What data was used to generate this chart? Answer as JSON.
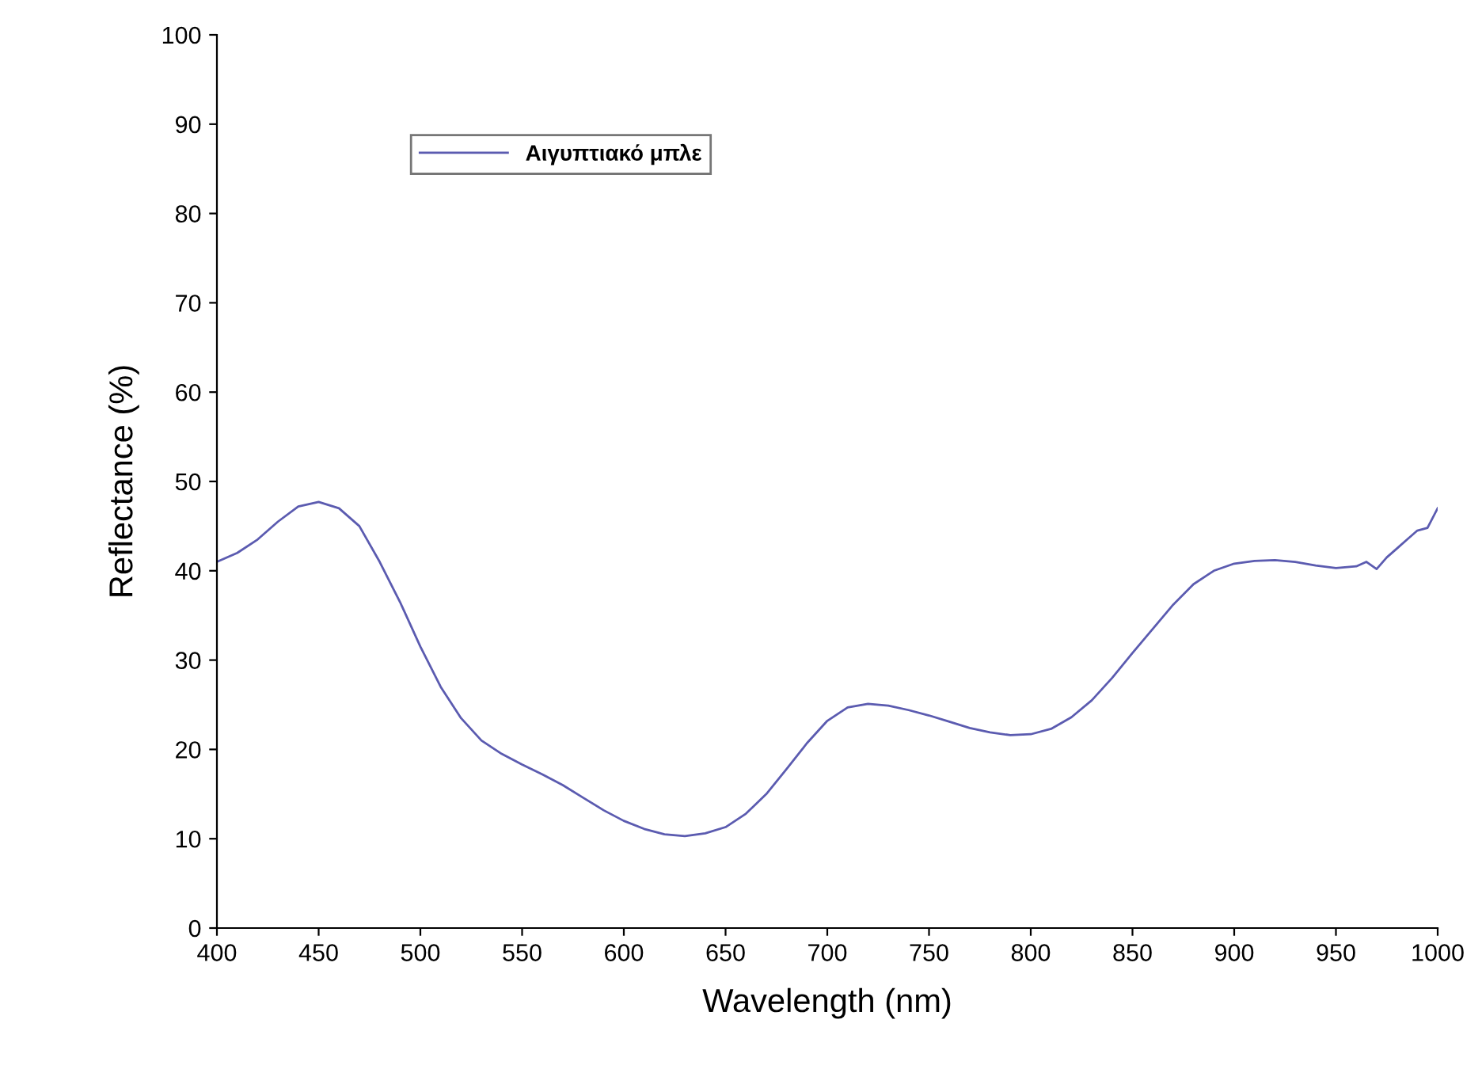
{
  "chart_data": {
    "type": "line",
    "xlabel": "Wavelength (nm)",
    "ylabel": "Reflectance (%)",
    "x": [
      400,
      410,
      420,
      430,
      440,
      450,
      460,
      470,
      480,
      490,
      500,
      510,
      520,
      530,
      540,
      550,
      560,
      570,
      580,
      590,
      600,
      610,
      620,
      630,
      640,
      650,
      660,
      670,
      680,
      690,
      700,
      710,
      720,
      730,
      740,
      750,
      760,
      770,
      780,
      790,
      800,
      810,
      820,
      830,
      840,
      850,
      860,
      870,
      880,
      890,
      900,
      910,
      920,
      930,
      940,
      950,
      960,
      965,
      970,
      975,
      980,
      985,
      990,
      995,
      1000
    ],
    "series": [
      {
        "name": "Αιγυπτιακό μπλε",
        "color": "#5b5bb0",
        "values": [
          41,
          42,
          43.5,
          45.5,
          47.2,
          47.7,
          47,
          45,
          41,
          36.5,
          31.5,
          27,
          23.5,
          21,
          19.5,
          18.3,
          17.2,
          16,
          14.6,
          13.2,
          12,
          11.1,
          10.5,
          10.3,
          10.6,
          11.3,
          12.8,
          15,
          17.8,
          20.7,
          23.2,
          24.7,
          25.1,
          24.9,
          24.4,
          23.8,
          23.1,
          22.4,
          21.9,
          21.6,
          21.7,
          22.3,
          23.6,
          25.5,
          28,
          30.8,
          33.5,
          36.2,
          38.5,
          40,
          40.8,
          41.1,
          41.2,
          41,
          40.6,
          40.3,
          40.5,
          41,
          40.2,
          41.5,
          42.5,
          43.5,
          44.5,
          44.8,
          47
        ]
      }
    ],
    "xlim": [
      400,
      1000
    ],
    "xticks": [
      400,
      450,
      500,
      550,
      600,
      650,
      700,
      750,
      800,
      850,
      900,
      950,
      1000
    ],
    "ylim": [
      0,
      100
    ],
    "yticks": [
      0,
      10,
      20,
      30,
      40,
      50,
      60,
      70,
      80,
      90,
      100
    ],
    "legend": "top left",
    "grid": false,
    "marker": "none",
    "line_style": "solid"
  }
}
